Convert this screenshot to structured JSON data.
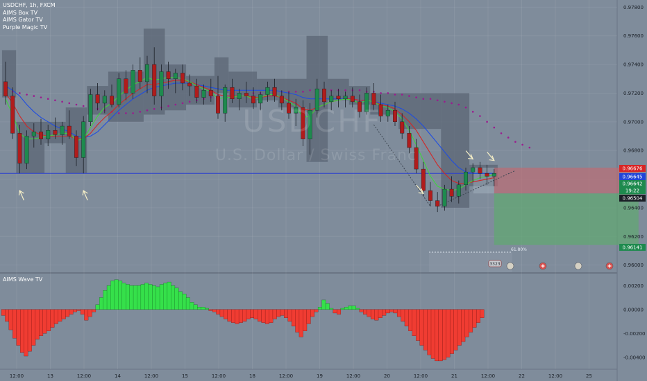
{
  "legend": {
    "title": "USDCHF, 1h, FXCM",
    "indicators": [
      "AIMS Box TV",
      "AIMS Gator TV",
      "Purple Magic TV"
    ]
  },
  "watermark": {
    "symbol": "USDCHF",
    "name": "U.S. Dollar / Swiss Franc"
  },
  "lower_pane": {
    "title": "AIMS Wave TV"
  },
  "colors": {
    "background": "#7f8c9b",
    "bull": "#1e8a4e",
    "bear": "#b01c1c",
    "box": "#5b6674",
    "blue_line": "#1f4de0",
    "red_line": "#d02828",
    "green_line": "#3fd43f",
    "purple_dots": "#9b1b8f",
    "wave_green": "#35e04a",
    "wave_red": "#f03c32"
  },
  "price_badges": {
    "red": "0.96676",
    "blue": "0.96645",
    "green": "0.96642",
    "countdown": "19:22",
    "dark": "0.96504",
    "target": "0.96141"
  },
  "fib_label": "61.80%",
  "event_badge": "3323",
  "chart_data": [
    {
      "type": "candlestick",
      "title": "USDCHF, 1h, FXCM",
      "ylim": [
        0.9595,
        0.9785
      ],
      "y_ticks": [
        "0.97800",
        "0.97600",
        "0.97400",
        "0.97200",
        "0.97000",
        "0.96800",
        "0.96600",
        "0.96400",
        "0.96200",
        "0.96000"
      ],
      "x_ticks": [
        "12:00",
        "13",
        "12:00",
        "14",
        "12:00",
        "15",
        "12:00",
        "18",
        "12:00",
        "19",
        "12:00",
        "20",
        "12:00",
        "21",
        "12:00",
        "22",
        "12:00",
        "25"
      ],
      "support_level": 0.9664,
      "arrows": [
        {
          "x": 2,
          "y": 0.9652,
          "dir": "up"
        },
        {
          "x": 11,
          "y": 0.9652,
          "dir": "up"
        },
        {
          "x": 59,
          "y": 0.965,
          "dir": "down"
        },
        {
          "x": 66,
          "y": 0.9674,
          "dir": "down"
        },
        {
          "x": 69,
          "y": 0.9673,
          "dir": "down"
        }
      ],
      "boxes": [
        {
          "x0": 0,
          "x1": 2,
          "high": 0.975,
          "low": 0.9717
        },
        {
          "x0": 2,
          "x1": 6,
          "high": 0.97,
          "low": 0.9664
        },
        {
          "x0": 6,
          "x1": 9,
          "high": 0.97,
          "low": 0.9685
        },
        {
          "x0": 9,
          "x1": 12,
          "high": 0.971,
          "low": 0.9664
        },
        {
          "x0": 12,
          "x1": 15,
          "high": 0.9725,
          "low": 0.9705
        },
        {
          "x0": 15,
          "x1": 20,
          "high": 0.9735,
          "low": 0.97
        },
        {
          "x0": 20,
          "x1": 23,
          "high": 0.9765,
          "low": 0.9705
        },
        {
          "x0": 23,
          "x1": 26,
          "high": 0.974,
          "low": 0.9708
        },
        {
          "x0": 26,
          "x1": 30,
          "high": 0.9732,
          "low": 0.9712
        },
        {
          "x0": 30,
          "x1": 32,
          "high": 0.9745,
          "low": 0.972
        },
        {
          "x0": 32,
          "x1": 36,
          "high": 0.9735,
          "low": 0.971
        },
        {
          "x0": 36,
          "x1": 39,
          "high": 0.973,
          "low": 0.9715
        },
        {
          "x0": 39,
          "x1": 43,
          "high": 0.973,
          "low": 0.971
        },
        {
          "x0": 43,
          "x1": 46,
          "high": 0.976,
          "low": 0.9672
        },
        {
          "x0": 46,
          "x1": 49,
          "high": 0.973,
          "low": 0.9715
        },
        {
          "x0": 49,
          "x1": 52,
          "high": 0.9725,
          "low": 0.9712
        },
        {
          "x0": 52,
          "x1": 56,
          "high": 0.972,
          "low": 0.9705
        },
        {
          "x0": 56,
          "x1": 62,
          "high": 0.972,
          "low": 0.9695
        },
        {
          "x0": 62,
          "x1": 66,
          "high": 0.972,
          "low": 0.964
        },
        {
          "x0": 66,
          "x1": 70,
          "high": 0.967,
          "low": 0.9655
        }
      ],
      "candles": [
        [
          0.9728,
          0.9742,
          0.9712,
          0.9718
        ],
        [
          0.9718,
          0.9724,
          0.9688,
          0.9692
        ],
        [
          0.9692,
          0.9698,
          0.9664,
          0.9671
        ],
        [
          0.9671,
          0.9694,
          0.9667,
          0.969
        ],
        [
          0.969,
          0.9699,
          0.9682,
          0.9693
        ],
        [
          0.9693,
          0.9702,
          0.9684,
          0.9688
        ],
        [
          0.9688,
          0.9698,
          0.9683,
          0.9694
        ],
        [
          0.9694,
          0.9703,
          0.9688,
          0.9691
        ],
        [
          0.9691,
          0.97,
          0.9684,
          0.9697
        ],
        [
          0.9697,
          0.9708,
          0.9688,
          0.969
        ],
        [
          0.969,
          0.9694,
          0.9669,
          0.9675
        ],
        [
          0.9675,
          0.9704,
          0.9664,
          0.97
        ],
        [
          0.97,
          0.9723,
          0.9697,
          0.9719
        ],
        [
          0.9719,
          0.9727,
          0.9708,
          0.9713
        ],
        [
          0.9713,
          0.9722,
          0.9706,
          0.9718
        ],
        [
          0.9718,
          0.9726,
          0.971,
          0.9712
        ],
        [
          0.9712,
          0.9734,
          0.971,
          0.973
        ],
        [
          0.973,
          0.9736,
          0.9715,
          0.972
        ],
        [
          0.972,
          0.974,
          0.9716,
          0.9736
        ],
        [
          0.9736,
          0.9745,
          0.9723,
          0.9728
        ],
        [
          0.9728,
          0.9746,
          0.972,
          0.974
        ],
        [
          0.974,
          0.9752,
          0.9712,
          0.9718
        ],
        [
          0.9718,
          0.974,
          0.9708,
          0.9735
        ],
        [
          0.9735,
          0.9742,
          0.9723,
          0.973
        ],
        [
          0.973,
          0.9737,
          0.972,
          0.9734
        ],
        [
          0.9734,
          0.974,
          0.9722,
          0.9727
        ],
        [
          0.9727,
          0.9733,
          0.9718,
          0.9725
        ],
        [
          0.9725,
          0.973,
          0.9713,
          0.9717
        ],
        [
          0.9717,
          0.9726,
          0.9712,
          0.9722
        ],
        [
          0.9722,
          0.973,
          0.9714,
          0.9718
        ],
        [
          0.9718,
          0.9732,
          0.9702,
          0.9706
        ],
        [
          0.9706,
          0.9726,
          0.97,
          0.9724
        ],
        [
          0.9724,
          0.973,
          0.9713,
          0.9716
        ],
        [
          0.9716,
          0.9723,
          0.9708,
          0.972
        ],
        [
          0.972,
          0.9728,
          0.9713,
          0.9718
        ],
        [
          0.9718,
          0.9724,
          0.9709,
          0.9713
        ],
        [
          0.9713,
          0.9721,
          0.9708,
          0.9719
        ],
        [
          0.9719,
          0.9728,
          0.9714,
          0.9724
        ],
        [
          0.9724,
          0.973,
          0.9714,
          0.9718
        ],
        [
          0.9718,
          0.9722,
          0.9708,
          0.9713
        ],
        [
          0.9713,
          0.9721,
          0.9702,
          0.9706
        ],
        [
          0.9706,
          0.9716,
          0.9697,
          0.971
        ],
        [
          0.971,
          0.9715,
          0.9683,
          0.9688
        ],
        [
          0.9688,
          0.9713,
          0.9677,
          0.9708
        ],
        [
          0.9708,
          0.973,
          0.9703,
          0.9723
        ],
        [
          0.9723,
          0.9728,
          0.971,
          0.9714
        ],
        [
          0.9714,
          0.9722,
          0.9708,
          0.9718
        ],
        [
          0.9718,
          0.9723,
          0.971,
          0.9716
        ],
        [
          0.9716,
          0.9721,
          0.971,
          0.9718
        ],
        [
          0.9718,
          0.9724,
          0.971,
          0.9714
        ],
        [
          0.9714,
          0.9719,
          0.9703,
          0.9707
        ],
        [
          0.9707,
          0.9724,
          0.9705,
          0.972
        ],
        [
          0.972,
          0.9727,
          0.9708,
          0.9712
        ],
        [
          0.9712,
          0.9719,
          0.97,
          0.9704
        ],
        [
          0.9704,
          0.9712,
          0.97,
          0.9708
        ],
        [
          0.9708,
          0.9714,
          0.9697,
          0.97
        ],
        [
          0.97,
          0.9706,
          0.9688,
          0.9692
        ],
        [
          0.9692,
          0.9697,
          0.9678,
          0.9682
        ],
        [
          0.9682,
          0.9688,
          0.9664,
          0.9667
        ],
        [
          0.9667,
          0.9672,
          0.9648,
          0.9652
        ],
        [
          0.9652,
          0.9658,
          0.9641,
          0.9645
        ],
        [
          0.9645,
          0.9651,
          0.9637,
          0.9641
        ],
        [
          0.9641,
          0.9656,
          0.9638,
          0.9653
        ],
        [
          0.9653,
          0.9662,
          0.9644,
          0.9648
        ],
        [
          0.9648,
          0.9659,
          0.9643,
          0.9656
        ],
        [
          0.9656,
          0.9668,
          0.9652,
          0.9665
        ],
        [
          0.9665,
          0.9671,
          0.9658,
          0.9668
        ],
        [
          0.9668,
          0.9672,
          0.966,
          0.9664
        ],
        [
          0.9664,
          0.967,
          0.9656,
          0.9662
        ],
        [
          0.9662,
          0.9667,
          0.9655,
          0.9664
        ]
      ],
      "moving_averages": [
        {
          "color": "blue",
          "values": [
            0.9725,
            0.9722,
            0.9718,
            0.9712,
            0.9707,
            0.9703,
            0.97,
            0.9697,
            0.9695,
            0.9693,
            0.969,
            0.9689,
            0.969,
            0.9693,
            0.9698,
            0.9703,
            0.9708,
            0.9712,
            0.9716,
            0.9719,
            0.9722,
            0.9724,
            0.9725,
            0.9726,
            0.9727,
            0.9727,
            0.9727,
            0.9726,
            0.9725,
            0.9724,
            0.9723,
            0.9722,
            0.9722,
            0.9722,
            0.9722,
            0.9722,
            0.9722,
            0.9722,
            0.9722,
            0.9721,
            0.972,
            0.9719,
            0.9717,
            0.9716,
            0.9716,
            0.9716,
            0.9716,
            0.9716,
            0.9716,
            0.9716,
            0.9715,
            0.9715,
            0.9714,
            0.9713,
            0.9712,
            0.9711,
            0.9709,
            0.9706,
            0.9702,
            0.9697,
            0.9691,
            0.9685,
            0.9679,
            0.9673,
            0.9668,
            0.9665,
            0.9664,
            0.9664,
            0.9664,
            0.9664
          ]
        },
        {
          "color": "red",
          "values": [
            0.972,
            0.9713,
            0.9704,
            0.9697,
            0.9693,
            0.9691,
            0.969,
            0.969,
            0.969,
            0.969,
            0.9688,
            0.9688,
            0.9692,
            0.9698,
            0.9703,
            0.9707,
            0.9712,
            0.9716,
            0.972,
            0.9723,
            0.9726,
            0.9726,
            0.9727,
            0.9728,
            0.9729,
            0.9729,
            0.9728,
            0.9726,
            0.9724,
            0.9722,
            0.9719,
            0.9718,
            0.9718,
            0.9718,
            0.9718,
            0.9717,
            0.9717,
            0.9718,
            0.9718,
            0.9717,
            0.9715,
            0.9713,
            0.9709,
            0.9708,
            0.971,
            0.9712,
            0.9714,
            0.9715,
            0.9716,
            0.9716,
            0.9715,
            0.9715,
            0.9714,
            0.9712,
            0.9711,
            0.9709,
            0.9705,
            0.97,
            0.9694,
            0.9686,
            0.9678,
            0.967,
            0.9664,
            0.9659,
            0.9657,
            0.9657,
            0.9658,
            0.9659,
            0.966,
            0.9661
          ]
        },
        {
          "color": "green",
          "values": [
            0.9716,
            0.9705,
            0.9692,
            0.9688,
            0.9688,
            0.9689,
            0.969,
            0.9691,
            0.9692,
            0.9692,
            0.9687,
            0.9688,
            0.9696,
            0.9704,
            0.971,
            0.9713,
            0.9718,
            0.9722,
            0.9726,
            0.9728,
            0.9731,
            0.9729,
            0.973,
            0.9731,
            0.9731,
            0.973,
            0.9728,
            0.9725,
            0.9723,
            0.9721,
            0.9716,
            0.9717,
            0.9717,
            0.9718,
            0.9718,
            0.9716,
            0.9717,
            0.9719,
            0.9719,
            0.9717,
            0.9714,
            0.9711,
            0.9703,
            0.9704,
            0.971,
            0.9712,
            0.9714,
            0.9715,
            0.9716,
            0.9715,
            0.9713,
            0.9715,
            0.9714,
            0.9711,
            0.971,
            0.9707,
            0.9702,
            0.9694,
            0.9684,
            0.9673,
            0.9662,
            0.9655,
            0.9653,
            0.9652,
            0.9653,
            0.9656,
            0.9659,
            0.9661,
            0.9662,
            0.9663
          ]
        }
      ],
      "purple_dots_values": [
        0.9722,
        0.9721,
        0.972,
        0.9719,
        0.9718,
        0.9717,
        0.9716,
        0.9715,
        0.9714,
        0.9713,
        0.9712,
        0.9711,
        0.971,
        0.9709,
        0.9708,
        0.9707,
        0.9706,
        0.9706,
        0.9706,
        0.9707,
        0.9708,
        0.9709,
        0.971,
        0.9711,
        0.9712,
        0.9713,
        0.9714,
        0.9715,
        0.9716,
        0.9717,
        0.9718,
        0.9718,
        0.9719,
        0.9719,
        0.9719,
        0.972,
        0.972,
        0.972,
        0.9721,
        0.9721,
        0.9721,
        0.9721,
        0.9721,
        0.9722,
        0.9722,
        0.9722,
        0.9722,
        0.9722,
        0.9722,
        0.9722,
        0.9722,
        0.9721,
        0.9721,
        0.972,
        0.972,
        0.9719,
        0.9719,
        0.9718,
        0.9717,
        0.9716,
        0.9716,
        0.9715,
        0.9714,
        0.9713,
        0.9712,
        0.971,
        0.9707,
        0.9704,
        0.97,
        0.9696,
        0.9692,
        0.9689,
        0.9686,
        0.9684,
        0.9682
      ],
      "short_position": {
        "x0": 69,
        "x1": 89,
        "entry": 0.965,
        "stop": 0.9668,
        "target": 0.9614
      }
    },
    {
      "type": "bar",
      "title": "AIMS Wave TV",
      "ylim": [
        -0.005,
        0.003
      ],
      "y_ticks": [
        "0.00200",
        "0.00000",
        "-0.00200",
        "-0.00400"
      ],
      "values": [
        -0.0005,
        -0.001,
        -0.0017,
        -0.0024,
        -0.003,
        -0.0036,
        -0.0039,
        -0.0035,
        -0.003,
        -0.0025,
        -0.0022,
        -0.002,
        -0.0018,
        -0.0015,
        -0.0012,
        -0.001,
        -0.0008,
        -0.0006,
        -0.0004,
        -0.0002,
        -0.0001,
        -0.0004,
        -0.0009,
        -0.0006,
        -0.0002,
        0.0004,
        0.001,
        0.0016,
        0.002,
        0.0024,
        0.0025,
        0.0024,
        0.0022,
        0.0021,
        0.002,
        0.002,
        0.002,
        0.0021,
        0.0022,
        0.0021,
        0.002,
        0.0019,
        0.0021,
        0.0022,
        0.0023,
        0.002,
        0.0018,
        0.0015,
        0.0013,
        0.001,
        0.0006,
        0.0004,
        0.0002,
        0.0002,
        0.0001,
        -0.0001,
        -0.0002,
        -0.0004,
        -0.0006,
        -0.0008,
        -0.001,
        -0.0011,
        -0.0012,
        -0.0011,
        -0.001,
        -0.0008,
        -0.0007,
        -0.0008,
        -0.001,
        -0.0011,
        -0.0012,
        -0.0011,
        -0.0008,
        -0.0006,
        -0.0005,
        -0.0007,
        -0.001,
        -0.0014,
        -0.0019,
        -0.0023,
        -0.0018,
        -0.0012,
        -0.0006,
        -0.0002,
        0.0002,
        0.0008,
        0.0005,
        0.0001,
        -0.0003,
        -0.0004,
        0.0001,
        0.0002,
        0.0003,
        0.0003,
        0.0001,
        -0.0002,
        -0.0004,
        -0.0006,
        -0.0008,
        -0.0009,
        -0.0007,
        -0.0005,
        -0.0003,
        -0.0002,
        -0.0003,
        -0.0006,
        -0.001,
        -0.0014,
        -0.0018,
        -0.0022,
        -0.0026,
        -0.003,
        -0.0034,
        -0.0038,
        -0.0041,
        -0.0043,
        -0.0043,
        -0.0042,
        -0.004,
        -0.0037,
        -0.0034,
        -0.003,
        -0.0027,
        -0.0023,
        -0.0019,
        -0.0015,
        -0.0011,
        -0.0007
      ]
    }
  ]
}
